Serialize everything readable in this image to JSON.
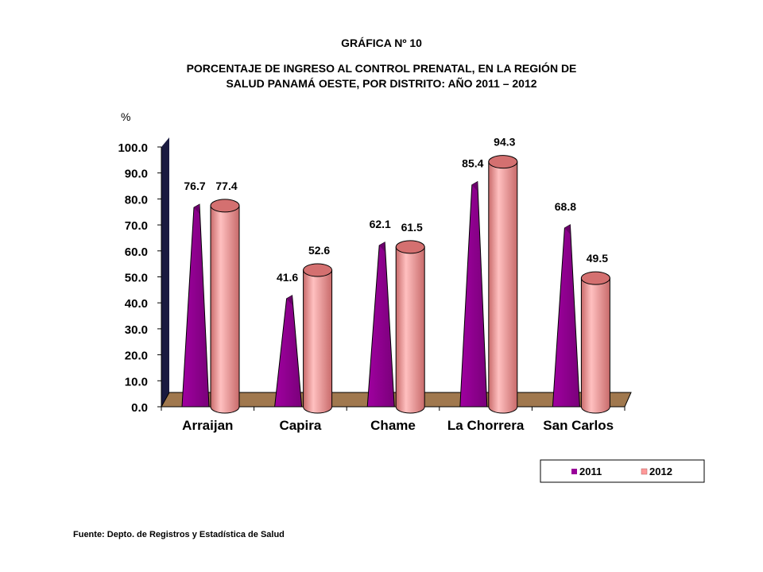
{
  "header": {
    "label": "GRÁFICA Nº 10",
    "title_line1": "PORCENTAJE DE INGRESO AL CONTROL PRENATAL, EN LA REGIÓN DE",
    "title_line2": "SALUD PANAMÁ OESTE, POR DISTRITO: AÑO 2011 – 2012"
  },
  "chart_data": {
    "type": "bar",
    "categories": [
      "Arraijan",
      "Capira",
      "Chame",
      "La Chorrera",
      "San Carlos"
    ],
    "series": [
      {
        "name": "2011",
        "values": [
          76.7,
          41.6,
          62.1,
          85.4,
          68.8
        ],
        "color": "#990099",
        "shape": "pyramid"
      },
      {
        "name": "2012",
        "values": [
          77.4,
          52.6,
          61.5,
          94.3,
          49.5
        ],
        "color": "#FF9999",
        "shape": "cylinder"
      }
    ],
    "ylabel": "%",
    "ylim": [
      0,
      100
    ],
    "yticks": [
      "0.0",
      "10.0",
      "20.0",
      "30.0",
      "40.0",
      "50.0",
      "60.0",
      "70.0",
      "80.0",
      "90.0",
      "100.0"
    ],
    "data_labels": [
      [
        "76.7",
        "41.6",
        "62.1",
        "85.4",
        "68.8"
      ],
      [
        "77.4",
        "52.6",
        "61.5",
        "94.3",
        "49.5"
      ]
    ],
    "legend_position": "bottom-right",
    "grid": false
  },
  "footer": {
    "source": "Fuente: Depto. de Registros  y Estadística de Salud"
  }
}
